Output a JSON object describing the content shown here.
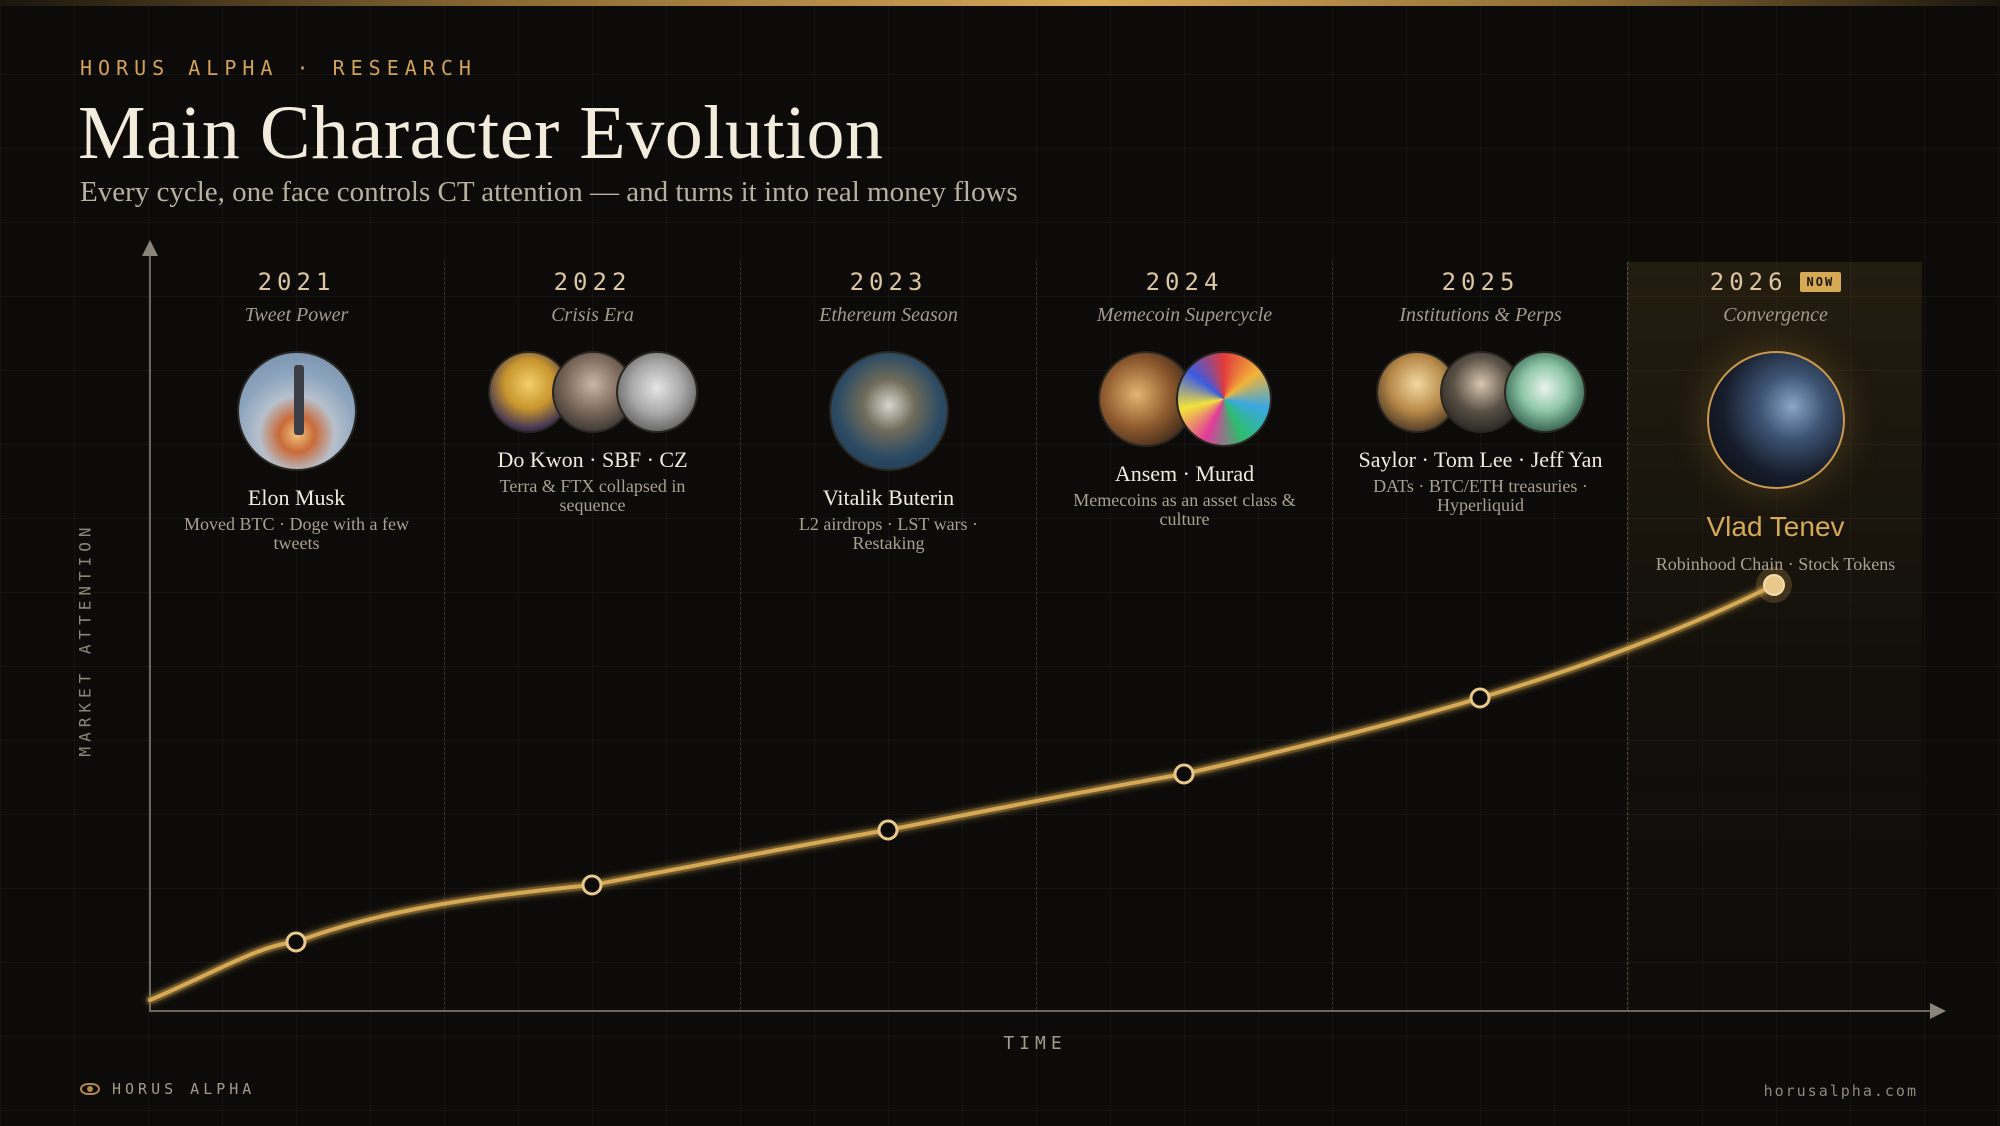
{
  "header": {
    "kicker": "HORUS ALPHA · RESEARCH",
    "title": "Main Character Evolution",
    "subtitle": "Every cycle, one face controls CT attention — and turns it into real money flows"
  },
  "axes": {
    "y_label": "MARKET ATTENTION",
    "x_label": "TIME"
  },
  "eras": [
    {
      "year": "2021",
      "label": "Tweet Power",
      "name": "Elon Musk",
      "desc": "Moved BTC · Doge with a few tweets",
      "avatars": [
        "rocket-photo"
      ]
    },
    {
      "year": "2022",
      "label": "Crisis Era",
      "name": "Do Kwon · SBF · CZ",
      "desc": "Terra & FTX collapsed in sequence",
      "avatars": [
        "do-kwon-avatar",
        "sbf-avatar",
        "cz-avatar"
      ]
    },
    {
      "year": "2023",
      "label": "Ethereum Season",
      "name": "Vitalik Buterin",
      "desc": "L2 airdrops · LST wars · Restaking",
      "avatars": [
        "vitalik-avatar"
      ]
    },
    {
      "year": "2024",
      "label": "Memecoin Supercycle",
      "name": "Ansem · Murad",
      "desc": "Memecoins as an asset class & culture",
      "avatars": [
        "ansem-avatar",
        "murad-avatar"
      ]
    },
    {
      "year": "2025",
      "label": "Institutions & Perps",
      "name": "Saylor · Tom Lee · Jeff Yan",
      "desc": "DATs · BTC/ETH treasuries · Hyperliquid",
      "avatars": [
        "saylor-avatar",
        "tom-lee-avatar",
        "jeff-yan-avatar"
      ]
    },
    {
      "year": "2026",
      "badge": "NOW",
      "label": "Convergence",
      "name": "Vlad Tenev",
      "desc": "Robinhood Chain · Stock Tokens",
      "avatars": [
        "vlad-tenev-avatar"
      ]
    }
  ],
  "colors": {
    "accent": "#d6a955",
    "background": "#0c0b09",
    "text": "#ece4d4"
  },
  "footer": {
    "brand": "HORUS ALPHA",
    "url": "horusalpha.com"
  }
}
